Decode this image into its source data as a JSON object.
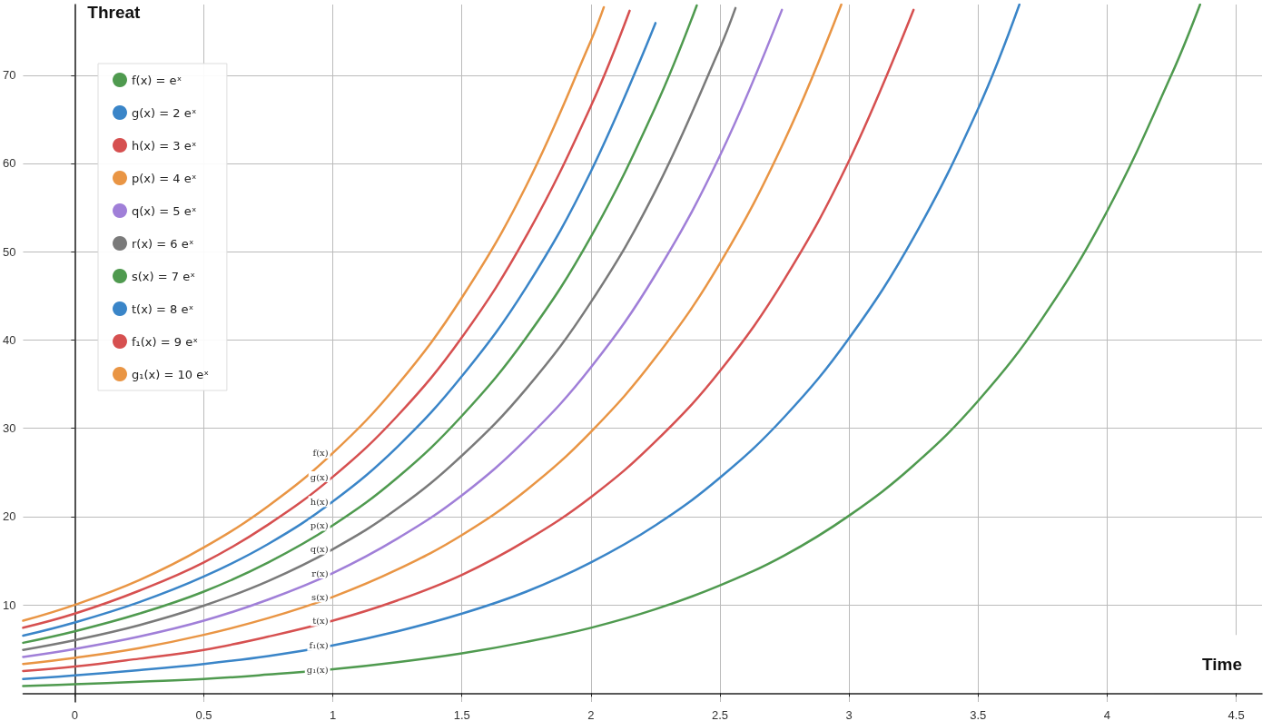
{
  "chart_data": {
    "type": "line",
    "xlabel": "Time",
    "ylabel": "Threat",
    "xlim": [
      -0.2,
      4.6
    ],
    "ylim": [
      -1,
      78
    ],
    "xticks": [
      0,
      0.5,
      1,
      1.5,
      2,
      2.5,
      3,
      3.5,
      4,
      4.5
    ],
    "yticks": [
      10,
      20,
      30,
      40,
      50,
      60,
      70
    ],
    "grid": true,
    "legend": "top left",
    "marker": "none",
    "line_style": "solid",
    "series": [
      {
        "name": "f(x) = eˣ",
        "color": "#4f9a4f",
        "x": [
          -0.2,
          0,
          0.25,
          0.5,
          0.75,
          1,
          1.25,
          1.5,
          1.75,
          2,
          2.25,
          2.5,
          2.75,
          3,
          3.25,
          3.5,
          3.75,
          4,
          4.25,
          4.36
        ],
        "values": [
          0.8,
          1,
          1.3,
          1.6,
          2.1,
          2.7,
          3.5,
          4.5,
          5.8,
          7.4,
          9.5,
          12.2,
          15.6,
          20.1,
          25.8,
          33.1,
          42.5,
          54.6,
          70.1,
          78
        ]
      },
      {
        "name": "g(x) = 2 eˣ",
        "color": "#3a85c8",
        "x": [
          -0.2,
          0,
          0.25,
          0.5,
          0.75,
          1,
          1.25,
          1.5,
          1.75,
          2,
          2.25,
          2.5,
          2.75,
          3,
          3.25,
          3.5,
          3.66
        ],
        "values": [
          1.6,
          2,
          2.6,
          3.3,
          4.2,
          5.4,
          7,
          9,
          11.5,
          14.8,
          19,
          24.4,
          31.3,
          40.2,
          51.6,
          66.2,
          78
        ]
      },
      {
        "name": "h(x) = 3 eˣ",
        "color": "#d65050",
        "x": [
          -0.2,
          0,
          0.25,
          0.5,
          0.75,
          1,
          1.25,
          1.5,
          1.75,
          2,
          2.25,
          2.5,
          2.75,
          3,
          3.25
        ],
        "values": [
          2.5,
          3,
          3.9,
          4.9,
          6.4,
          8.2,
          10.5,
          13.4,
          17.3,
          22.2,
          28.5,
          36.5,
          46.9,
          60.3,
          77.4
        ]
      },
      {
        "name": "p(x) = 4 eˣ",
        "color": "#e99544",
        "x": [
          -0.2,
          0,
          0.25,
          0.5,
          0.75,
          1,
          1.25,
          1.5,
          1.75,
          2,
          2.25,
          2.5,
          2.75,
          2.97
        ],
        "values": [
          3.3,
          4,
          5.1,
          6.6,
          8.5,
          10.9,
          14,
          17.9,
          23,
          29.6,
          38,
          48.7,
          62.6,
          78
        ]
      },
      {
        "name": "q(x) = 5 eˣ",
        "color": "#a07fd8",
        "x": [
          -0.2,
          0,
          0.25,
          0.5,
          0.75,
          1,
          1.25,
          1.5,
          1.75,
          2,
          2.25,
          2.5,
          2.74
        ],
        "values": [
          4.1,
          5,
          6.4,
          8.2,
          10.6,
          13.6,
          17.5,
          22.4,
          28.8,
          36.9,
          47.4,
          60.9,
          77.4
        ]
      },
      {
        "name": "r(x) = 6 eˣ",
        "color": "#7a7a7a",
        "x": [
          -0.2,
          0,
          0.25,
          0.5,
          0.75,
          1,
          1.25,
          1.5,
          1.75,
          2,
          2.25,
          2.5,
          2.56
        ],
        "values": [
          4.9,
          6,
          7.7,
          9.9,
          12.7,
          16.3,
          20.9,
          26.9,
          34.5,
          44.3,
          56.9,
          73.1,
          77.6
        ]
      },
      {
        "name": "s(x) = 7 eˣ",
        "color": "#4f9a4f",
        "x": [
          -0.2,
          0,
          0.25,
          0.5,
          0.75,
          1,
          1.25,
          1.5,
          1.75,
          2,
          2.25,
          2.41
        ],
        "values": [
          5.7,
          7,
          9,
          11.5,
          14.8,
          19,
          24.4,
          31.4,
          40.3,
          51.7,
          66.4,
          77.9
        ]
      },
      {
        "name": "t(x) = 8 eˣ",
        "color": "#3a85c8",
        "x": [
          -0.2,
          0,
          0.25,
          0.5,
          0.75,
          1,
          1.25,
          1.5,
          1.75,
          2,
          2.25
        ],
        "values": [
          6.5,
          8,
          10.3,
          13.2,
          16.9,
          21.7,
          27.9,
          35.9,
          46,
          59.1,
          75.9
        ]
      },
      {
        "name": "f₁(x) = 9 eˣ",
        "color": "#d65050",
        "x": [
          -0.2,
          0,
          0.25,
          0.5,
          0.75,
          1,
          1.25,
          1.5,
          1.75,
          2,
          2.15
        ],
        "values": [
          7.4,
          9,
          11.6,
          14.8,
          19.1,
          24.5,
          31.4,
          40.3,
          51.8,
          66.5,
          77.3
        ]
      },
      {
        "name": "g₁(x) = 10 eˣ",
        "color": "#e99544",
        "x": [
          -0.2,
          0,
          0.25,
          0.5,
          0.75,
          1,
          1.25,
          1.5,
          1.75,
          2,
          2.05
        ],
        "values": [
          8.2,
          10,
          12.8,
          16.5,
          21.2,
          27.2,
          34.9,
          44.8,
          57.5,
          73.9,
          77.7
        ]
      }
    ],
    "annotations": [
      "f(x)",
      "g(x)",
      "h(x)",
      "p(x)",
      "q(x)",
      "r(x)",
      "s(x)",
      "t(x)",
      "f₁(x)",
      "g₁(x)"
    ]
  }
}
